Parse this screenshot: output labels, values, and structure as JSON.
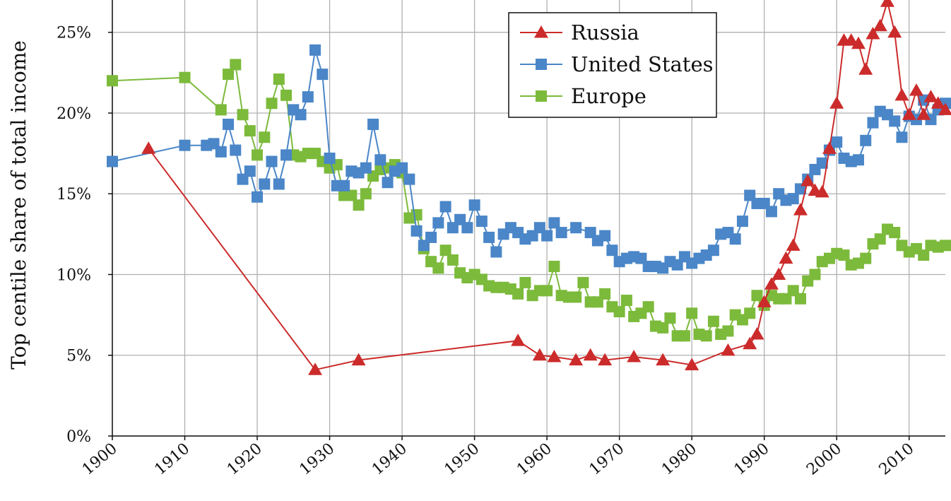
{
  "chart_data": {
    "type": "line",
    "title": "",
    "xlabel": "",
    "ylabel": "Top centile share of total income",
    "xlim": [
      1900,
      2015
    ],
    "ylim": [
      0,
      0.25
    ],
    "y_max_display": 0.27,
    "x_ticks": [
      1900,
      1910,
      1920,
      1930,
      1940,
      1950,
      1960,
      1970,
      1980,
      1990,
      2000,
      2010
    ],
    "x_tick_labels": [
      "1900",
      "1910",
      "1920",
      "1930",
      "1940",
      "1950",
      "1960",
      "1970",
      "1980",
      "1990",
      "2000",
      "2010"
    ],
    "y_ticks": [
      0,
      0.05,
      0.1,
      0.15,
      0.2,
      0.25
    ],
    "y_tick_labels": [
      "0%",
      "5%",
      "10%",
      "15%",
      "20%",
      "25%"
    ],
    "grid": true,
    "legend_position": "top-right",
    "series": [
      {
        "name": "Russia",
        "color": "#cc2b2b",
        "marker": "triangle",
        "x": [
          1905,
          1928,
          1934,
          1956,
          1959,
          1961,
          1964,
          1966,
          1968,
          1972,
          1976,
          1980,
          1985,
          1988,
          1989,
          1990,
          1991,
          1992,
          1993,
          1994,
          1995,
          1996,
          1997,
          1998,
          1999,
          2000,
          2001,
          2002,
          2003,
          2004,
          2005,
          2006,
          2007,
          2008,
          2009,
          2010,
          2011,
          2012,
          2013,
          2014,
          2015
        ],
        "y": [
          0.178,
          0.041,
          0.047,
          0.059,
          0.05,
          0.049,
          0.047,
          0.05,
          0.047,
          0.049,
          0.047,
          0.044,
          0.053,
          0.057,
          0.063,
          0.083,
          0.094,
          0.1,
          0.11,
          0.118,
          0.14,
          0.158,
          0.152,
          0.151,
          0.178,
          0.206,
          0.245,
          0.245,
          0.243,
          0.227,
          0.249,
          0.254,
          0.269,
          0.25,
          0.211,
          0.199,
          0.214,
          0.199,
          0.21,
          0.206,
          0.202
        ]
      },
      {
        "name": "United States",
        "color": "#4a86c8",
        "marker": "square",
        "x": [
          1900,
          1910,
          1913,
          1914,
          1915,
          1916,
          1917,
          1918,
          1919,
          1920,
          1921,
          1922,
          1923,
          1924,
          1925,
          1926,
          1927,
          1928,
          1929,
          1930,
          1931,
          1932,
          1933,
          1934,
          1935,
          1936,
          1937,
          1938,
          1939,
          1940,
          1941,
          1942,
          1943,
          1944,
          1945,
          1946,
          1947,
          1948,
          1949,
          1950,
          1951,
          1952,
          1953,
          1954,
          1955,
          1956,
          1957,
          1958,
          1959,
          1960,
          1961,
          1962,
          1964,
          1966,
          1967,
          1968,
          1969,
          1970,
          1971,
          1972,
          1973,
          1974,
          1975,
          1976,
          1977,
          1978,
          1979,
          1980,
          1981,
          1982,
          1983,
          1984,
          1985,
          1986,
          1987,
          1988,
          1989,
          1990,
          1991,
          1992,
          1993,
          1994,
          1995,
          1996,
          1997,
          1998,
          1999,
          2000,
          2001,
          2002,
          2003,
          2004,
          2005,
          2006,
          2007,
          2008,
          2009,
          2010,
          2011,
          2012,
          2013,
          2014,
          2015
        ],
        "y": [
          0.17,
          0.18,
          0.18,
          0.181,
          0.176,
          0.193,
          0.177,
          0.159,
          0.164,
          0.148,
          0.156,
          0.17,
          0.156,
          0.174,
          0.202,
          0.199,
          0.21,
          0.239,
          0.224,
          0.172,
          0.155,
          0.155,
          0.164,
          0.163,
          0.166,
          0.193,
          0.171,
          0.157,
          0.164,
          0.166,
          0.159,
          0.127,
          0.118,
          0.123,
          0.132,
          0.142,
          0.129,
          0.134,
          0.129,
          0.143,
          0.133,
          0.123,
          0.114,
          0.125,
          0.129,
          0.126,
          0.122,
          0.124,
          0.129,
          0.124,
          0.132,
          0.126,
          0.129,
          0.126,
          0.121,
          0.124,
          0.115,
          0.108,
          0.11,
          0.111,
          0.11,
          0.105,
          0.105,
          0.104,
          0.108,
          0.106,
          0.111,
          0.107,
          0.11,
          0.112,
          0.115,
          0.125,
          0.126,
          0.122,
          0.133,
          0.149,
          0.144,
          0.144,
          0.139,
          0.15,
          0.146,
          0.147,
          0.153,
          0.159,
          0.165,
          0.169,
          0.177,
          0.182,
          0.172,
          0.17,
          0.171,
          0.183,
          0.194,
          0.201,
          0.199,
          0.195,
          0.185,
          0.198,
          0.196,
          0.208,
          0.196,
          0.202,
          0.206
        ]
      },
      {
        "name": "Europe",
        "color": "#7cba3b",
        "marker": "square",
        "x": [
          1900,
          1910,
          1915,
          1916,
          1917,
          1918,
          1919,
          1920,
          1921,
          1922,
          1923,
          1924,
          1925,
          1926,
          1927,
          1928,
          1929,
          1930,
          1931,
          1932,
          1933,
          1934,
          1935,
          1936,
          1937,
          1938,
          1939,
          1940,
          1941,
          1942,
          1943,
          1944,
          1945,
          1946,
          1947,
          1948,
          1949,
          1950,
          1951,
          1952,
          1953,
          1954,
          1955,
          1956,
          1957,
          1958,
          1959,
          1960,
          1961,
          1962,
          1963,
          1964,
          1965,
          1966,
          1967,
          1968,
          1969,
          1970,
          1971,
          1972,
          1973,
          1974,
          1975,
          1976,
          1977,
          1978,
          1979,
          1980,
          1981,
          1982,
          1983,
          1984,
          1985,
          1986,
          1987,
          1988,
          1989,
          1990,
          1991,
          1992,
          1993,
          1994,
          1995,
          1996,
          1997,
          1998,
          1999,
          2000,
          2001,
          2002,
          2003,
          2004,
          2005,
          2006,
          2007,
          2008,
          2009,
          2010,
          2011,
          2012,
          2013,
          2014,
          2015
        ],
        "y": [
          0.22,
          0.222,
          0.202,
          0.224,
          0.23,
          0.199,
          0.189,
          0.174,
          0.185,
          0.206,
          0.221,
          0.211,
          0.174,
          0.173,
          0.175,
          0.175,
          0.17,
          0.166,
          0.168,
          0.149,
          0.149,
          0.143,
          0.15,
          0.161,
          0.165,
          0.166,
          0.168,
          0.163,
          0.135,
          0.137,
          0.116,
          0.108,
          0.104,
          0.115,
          0.109,
          0.101,
          0.098,
          0.1,
          0.097,
          0.093,
          0.092,
          0.092,
          0.091,
          0.088,
          0.095,
          0.087,
          0.09,
          0.09,
          0.105,
          0.087,
          0.086,
          0.086,
          0.095,
          0.083,
          0.083,
          0.088,
          0.08,
          0.077,
          0.084,
          0.074,
          0.076,
          0.08,
          0.068,
          0.067,
          0.073,
          0.062,
          0.062,
          0.076,
          0.063,
          0.062,
          0.071,
          0.063,
          0.065,
          0.075,
          0.072,
          0.076,
          0.087,
          0.081,
          0.087,
          0.085,
          0.085,
          0.09,
          0.085,
          0.096,
          0.1,
          0.108,
          0.11,
          0.113,
          0.112,
          0.106,
          0.107,
          0.11,
          0.119,
          0.122,
          0.128,
          0.126,
          0.118,
          0.114,
          0.116,
          0.112,
          0.118,
          0.117,
          0.118
        ]
      }
    ]
  }
}
